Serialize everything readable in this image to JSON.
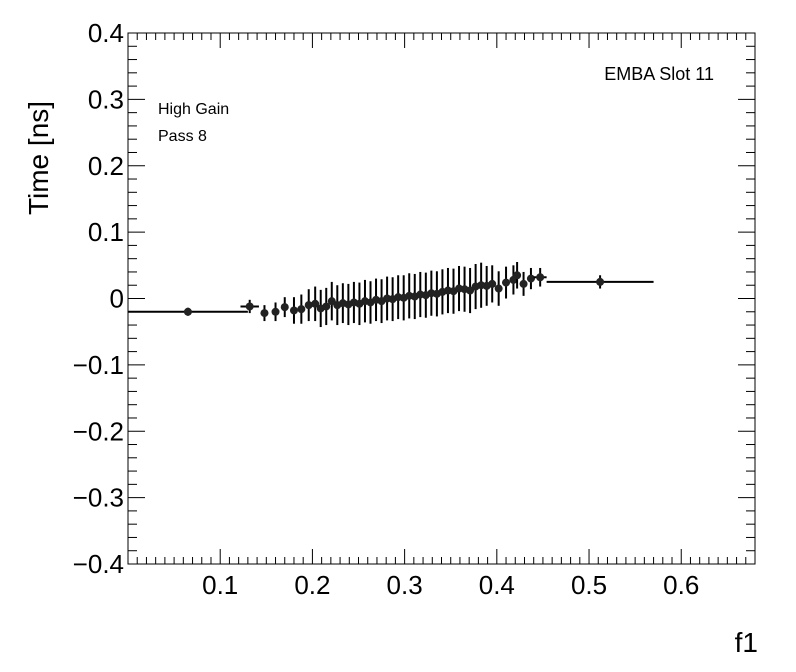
{
  "chart_data": {
    "type": "scatter",
    "xlabel": "f1",
    "ylabel": "Time [ns]",
    "xlim": [
      0.0,
      0.68
    ],
    "ylim": [
      -0.4,
      0.4
    ],
    "x_ticks": [
      0.1,
      0.2,
      0.3,
      0.4,
      0.5,
      0.6
    ],
    "x_tick_labels": [
      "0.1",
      "0.2",
      "0.3",
      "0.4",
      "0.5",
      "0.6"
    ],
    "y_ticks": [
      -0.4,
      -0.3,
      -0.2,
      -0.1,
      0,
      0.1,
      0.2,
      0.3,
      0.4
    ],
    "y_tick_labels": [
      "−0.4",
      "−0.3",
      "−0.2",
      "−0.1",
      "0",
      "0.1",
      "0.2",
      "0.3",
      "0.4"
    ],
    "grid": false,
    "annotations": {
      "gain": "High Gain",
      "pass": "Pass 8",
      "module": "EMBA Slot 11"
    },
    "marker_color": "#222222",
    "points": [
      {
        "x": 0.065,
        "y": -0.02,
        "xerr": 0.065,
        "yerr": 0.006
      },
      {
        "x": 0.132,
        "y": -0.012,
        "xerr": 0.01,
        "yerr": 0.01
      },
      {
        "x": 0.148,
        "y": -0.022,
        "xerr": 0.004,
        "yerr": 0.012
      },
      {
        "x": 0.16,
        "y": -0.02,
        "xerr": 0.004,
        "yerr": 0.014
      },
      {
        "x": 0.17,
        "y": -0.013,
        "xerr": 0.004,
        "yerr": 0.015
      },
      {
        "x": 0.18,
        "y": -0.018,
        "xerr": 0.003,
        "yerr": 0.02
      },
      {
        "x": 0.188,
        "y": -0.016,
        "xerr": 0.003,
        "yerr": 0.022
      },
      {
        "x": 0.196,
        "y": -0.01,
        "xerr": 0.003,
        "yerr": 0.024
      },
      {
        "x": 0.203,
        "y": -0.008,
        "xerr": 0.003,
        "yerr": 0.026
      },
      {
        "x": 0.209,
        "y": -0.015,
        "xerr": 0.003,
        "yerr": 0.028
      },
      {
        "x": 0.215,
        "y": -0.012,
        "xerr": 0.003,
        "yerr": 0.028
      },
      {
        "x": 0.221,
        "y": -0.004,
        "xerr": 0.003,
        "yerr": 0.029
      },
      {
        "x": 0.227,
        "y": -0.01,
        "xerr": 0.003,
        "yerr": 0.03
      },
      {
        "x": 0.233,
        "y": -0.007,
        "xerr": 0.003,
        "yerr": 0.03
      },
      {
        "x": 0.239,
        "y": -0.009,
        "xerr": 0.003,
        "yerr": 0.031
      },
      {
        "x": 0.245,
        "y": -0.006,
        "xerr": 0.003,
        "yerr": 0.031
      },
      {
        "x": 0.251,
        "y": -0.008,
        "xerr": 0.003,
        "yerr": 0.032
      },
      {
        "x": 0.257,
        "y": -0.004,
        "xerr": 0.003,
        "yerr": 0.032
      },
      {
        "x": 0.263,
        "y": -0.006,
        "xerr": 0.003,
        "yerr": 0.032
      },
      {
        "x": 0.269,
        "y": -0.002,
        "xerr": 0.003,
        "yerr": 0.032
      },
      {
        "x": 0.275,
        "y": -0.004,
        "xerr": 0.003,
        "yerr": 0.033
      },
      {
        "x": 0.281,
        "y": 0.0,
        "xerr": 0.003,
        "yerr": 0.033
      },
      {
        "x": 0.287,
        "y": -0.001,
        "xerr": 0.003,
        "yerr": 0.033
      },
      {
        "x": 0.293,
        "y": 0.002,
        "xerr": 0.003,
        "yerr": 0.033
      },
      {
        "x": 0.299,
        "y": 0.001,
        "xerr": 0.003,
        "yerr": 0.034
      },
      {
        "x": 0.305,
        "y": 0.004,
        "xerr": 0.003,
        "yerr": 0.034
      },
      {
        "x": 0.311,
        "y": 0.003,
        "xerr": 0.003,
        "yerr": 0.034
      },
      {
        "x": 0.317,
        "y": 0.006,
        "xerr": 0.003,
        "yerr": 0.034
      },
      {
        "x": 0.323,
        "y": 0.005,
        "xerr": 0.003,
        "yerr": 0.034
      },
      {
        "x": 0.329,
        "y": 0.008,
        "xerr": 0.003,
        "yerr": 0.034
      },
      {
        "x": 0.335,
        "y": 0.007,
        "xerr": 0.003,
        "yerr": 0.034
      },
      {
        "x": 0.341,
        "y": 0.01,
        "xerr": 0.003,
        "yerr": 0.034
      },
      {
        "x": 0.347,
        "y": 0.012,
        "xerr": 0.003,
        "yerr": 0.034
      },
      {
        "x": 0.353,
        "y": 0.011,
        "xerr": 0.003,
        "yerr": 0.034
      },
      {
        "x": 0.359,
        "y": 0.015,
        "xerr": 0.003,
        "yerr": 0.034
      },
      {
        "x": 0.365,
        "y": 0.014,
        "xerr": 0.003,
        "yerr": 0.034
      },
      {
        "x": 0.371,
        "y": 0.012,
        "xerr": 0.003,
        "yerr": 0.034
      },
      {
        "x": 0.377,
        "y": 0.018,
        "xerr": 0.003,
        "yerr": 0.034
      },
      {
        "x": 0.383,
        "y": 0.02,
        "xerr": 0.003,
        "yerr": 0.034
      },
      {
        "x": 0.389,
        "y": 0.019,
        "xerr": 0.003,
        "yerr": 0.03
      },
      {
        "x": 0.395,
        "y": 0.022,
        "xerr": 0.003,
        "yerr": 0.028
      },
      {
        "x": 0.402,
        "y": 0.015,
        "xerr": 0.004,
        "yerr": 0.026
      },
      {
        "x": 0.41,
        "y": 0.024,
        "xerr": 0.004,
        "yerr": 0.024
      },
      {
        "x": 0.418,
        "y": 0.028,
        "xerr": 0.004,
        "yerr": 0.022
      },
      {
        "x": 0.422,
        "y": 0.035,
        "xerr": 0.004,
        "yerr": 0.02
      },
      {
        "x": 0.429,
        "y": 0.022,
        "xerr": 0.004,
        "yerr": 0.018
      },
      {
        "x": 0.437,
        "y": 0.03,
        "xerr": 0.004,
        "yerr": 0.016
      },
      {
        "x": 0.447,
        "y": 0.032,
        "xerr": 0.007,
        "yerr": 0.014
      },
      {
        "x": 0.512,
        "y": 0.025,
        "xerr": 0.058,
        "yerr": 0.01
      }
    ]
  }
}
